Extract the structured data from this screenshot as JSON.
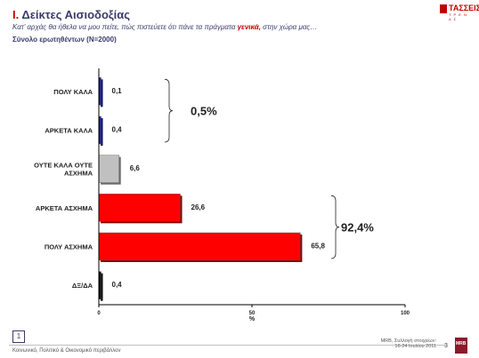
{
  "header": {
    "section_number": "Ι.",
    "title": "Δείκτες Αισιοδοξίας",
    "subtitle_before": "Κατ’ αρχάς θα ήθελα να μου πείτε, πώς πιστεύετε ότι πάνε τα πράγματα ",
    "subtitle_highlight": "γενικά,",
    "subtitle_after": " στην χώρα μας…",
    "base_text": "Σύνολο ερωτηθέντων (Ν=2000)"
  },
  "logo_top": {
    "word": "ΤΑΣΣΕΙΣ",
    "tag": "Τ Ρ Ε Ν Δ Σ"
  },
  "chart_data": {
    "type": "bar",
    "orientation": "horizontal",
    "categories": [
      "ΠΟΛΥ ΚΑΛΑ",
      "ΑΡΚΕΤΑ ΚΑΛΑ",
      "ΟΥΤΕ ΚΑΛΑ ΟΥΤΕ ΑΣΧΗΜΑ",
      "ΑΡΚΕΤΑ ΑΣΧΗΜΑ",
      "ΠΟΛΥ ΑΣΧΗΜΑ",
      "ΔΞ/ΔΑ"
    ],
    "values": [
      0.1,
      0.4,
      6.6,
      26.6,
      65.8,
      0.4
    ],
    "value_labels": [
      "0,1",
      "0,4",
      "6,6",
      "26,6",
      "65,8",
      "0,4"
    ],
    "colors": [
      "#1f1f9e",
      "#1f1f9e",
      "#c0c0c0",
      "#ff0000",
      "#ff0000",
      "#111111"
    ],
    "xlim": [
      0,
      100
    ],
    "xticks": [
      "0",
      "50",
      "100"
    ],
    "xlabel": "%",
    "grid": false,
    "legend": "none",
    "annotations": [
      {
        "text": "0,5%",
        "group": [
          0,
          1
        ]
      },
      {
        "text": "92,4%",
        "group": [
          3,
          4
        ]
      }
    ]
  },
  "footer": {
    "page_box": "1",
    "left_text": "Κοινωνικό, Πολιτικό & Οικονομικό περιβάλλον",
    "right_line1": "MRB, Συλλογή στοιχείων:",
    "right_line2": "16-24 Ιουλίου 2011",
    "page_number": "3",
    "logo_text": "MRB"
  }
}
